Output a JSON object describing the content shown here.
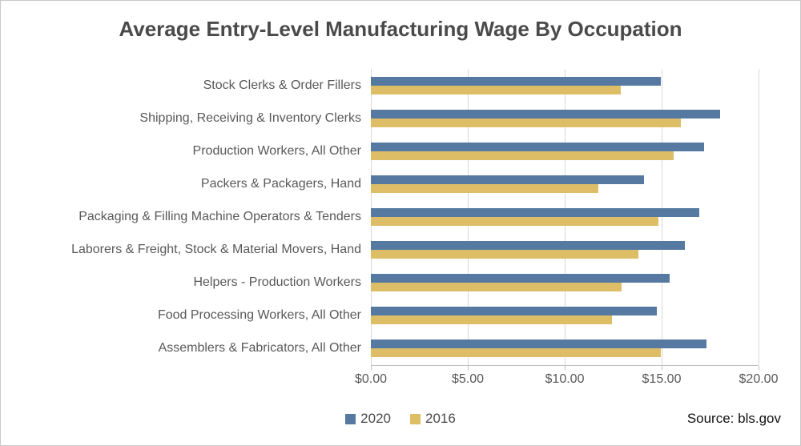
{
  "source_note": "Source: bls.gov",
  "chart_data": {
    "type": "bar",
    "orientation": "horizontal",
    "title": "Average Entry-Level Manufacturing Wage By Occupation",
    "categories": [
      "Stock Clerks & Order Fillers",
      "Shipping, Receiving & Inventory Clerks",
      "Production Workers, All Other",
      "Packers & Packagers, Hand",
      "Packaging & Filling Machine Operators & Tenders",
      "Laborers & Freight, Stock & Material Movers, Hand",
      "Helpers - Production Workers",
      "Food Processing Workers, All Other",
      "Assemblers & Fabricators, All Other"
    ],
    "series": [
      {
        "name": "2020",
        "color": "#5579A1",
        "values": [
          14.95,
          18.0,
          17.2,
          14.1,
          16.95,
          16.2,
          15.4,
          14.75,
          17.3
        ]
      },
      {
        "name": "2016",
        "color": "#DDBE67",
        "values": [
          12.9,
          16.0,
          15.6,
          11.75,
          14.85,
          13.8,
          12.95,
          12.45,
          14.95
        ]
      }
    ],
    "x_axis": {
      "min": 0,
      "max": 20,
      "tick_interval": 5,
      "tick_labels": [
        "$0.00",
        "$5.00",
        "$10.00",
        "$15.00",
        "$20.00"
      ]
    },
    "legend": {
      "position": "bottom",
      "entries": [
        "2020",
        "2016"
      ]
    },
    "gridlines": "vertical",
    "gridline_color": "#D9D9D9",
    "axis_line_color": "#BFBFBF",
    "text_color": "#595959"
  }
}
